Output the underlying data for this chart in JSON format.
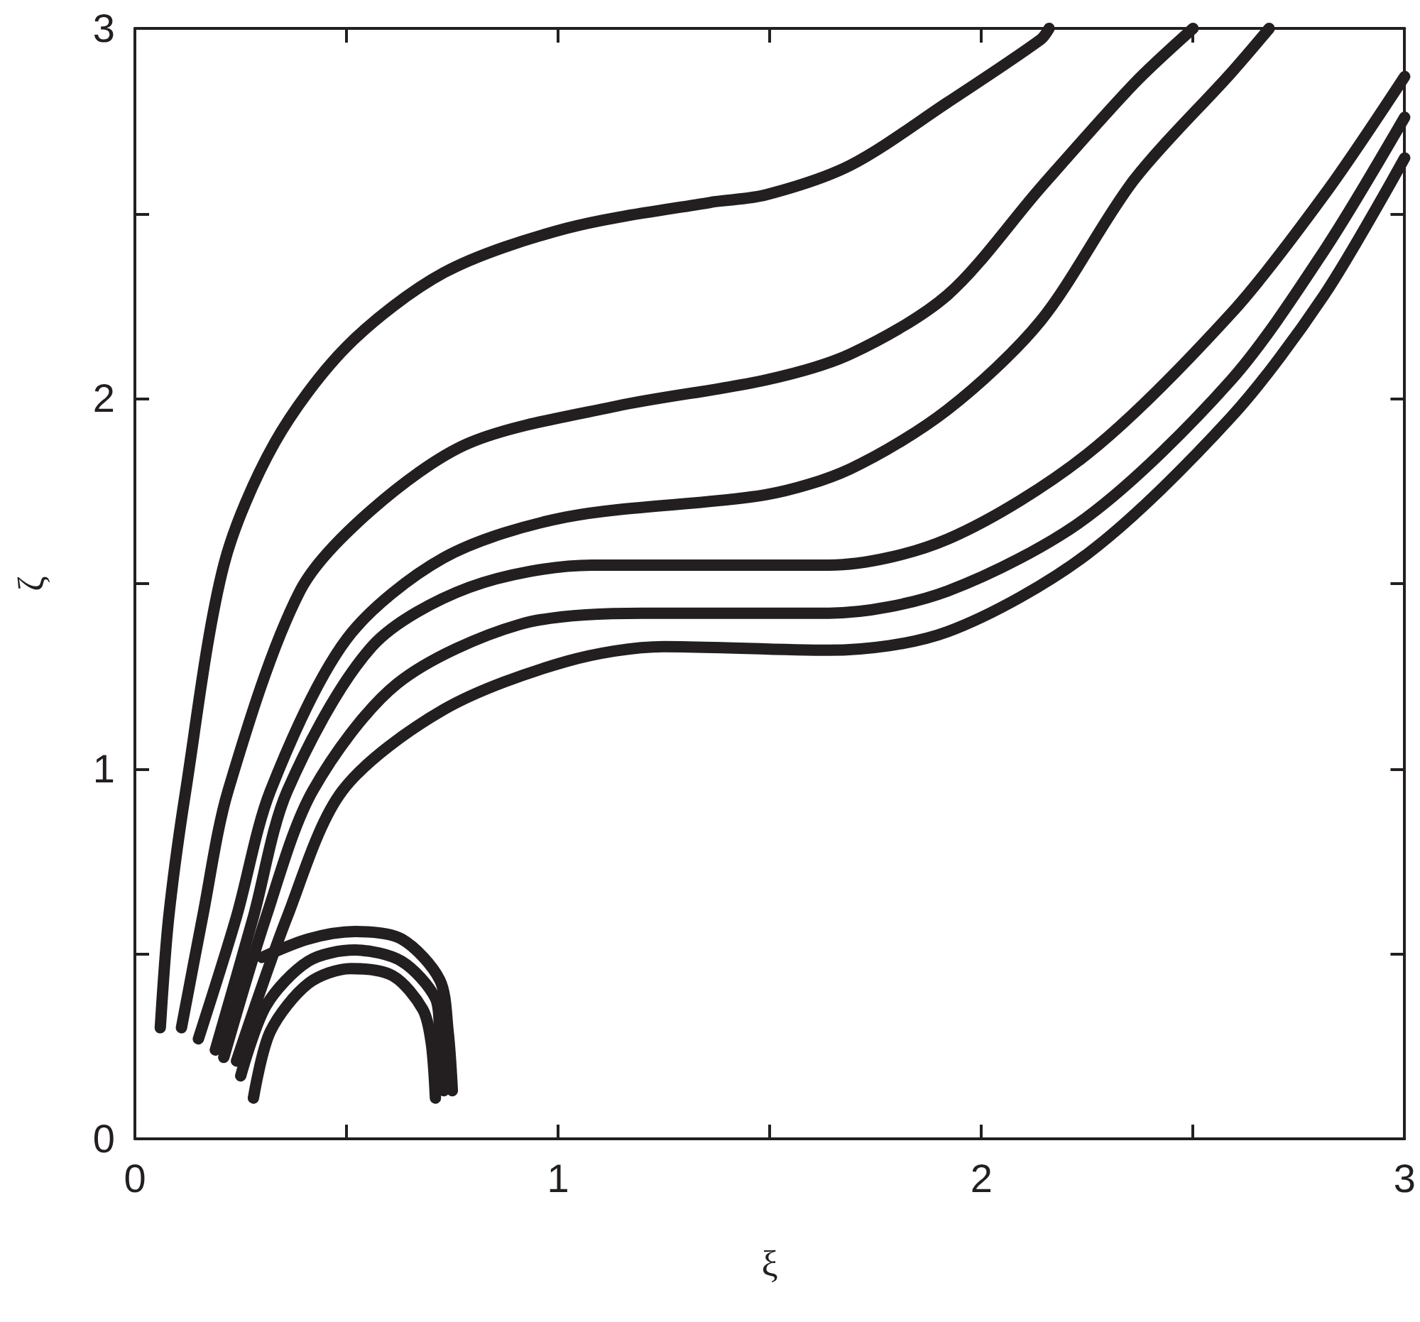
{
  "chart_data": {
    "type": "line",
    "xlabel": "ξ",
    "ylabel": "ζ",
    "xlim": [
      0,
      3
    ],
    "ylim": [
      0,
      3
    ],
    "xticks": [
      0,
      {
        "value": 0.5,
        "label": null
      },
      1,
      {
        "value": 1.5,
        "label": null
      },
      2,
      {
        "value": 2.5,
        "label": null
      },
      3
    ],
    "yticks": [
      0,
      {
        "value": 0.5,
        "label": null
      },
      1,
      {
        "value": 1.5,
        "label": null
      },
      2,
      {
        "value": 2.5,
        "label": null
      },
      3
    ],
    "grid": false,
    "marker": "none",
    "line_style": "solid",
    "series": [
      {
        "color": "#231f20",
        "x": [
          0.06,
          0.08,
          0.12,
          0.21,
          0.33,
          0.5,
          0.73,
          1.02,
          1.36,
          1.49,
          1.69,
          1.92,
          2.14,
          2.16
        ],
        "values": [
          0.3,
          0.6,
          0.94,
          1.55,
          1.88,
          2.14,
          2.34,
          2.46,
          2.53,
          2.55,
          2.63,
          2.8,
          2.97,
          3.0
        ]
      },
      {
        "color": "#231f20",
        "x": [
          0.11,
          0.16,
          0.22,
          0.39,
          0.56,
          0.79,
          1.14,
          1.49,
          1.69,
          1.92,
          2.14,
          2.36,
          2.5
        ],
        "values": [
          0.3,
          0.6,
          0.94,
          1.48,
          1.7,
          1.88,
          1.98,
          2.05,
          2.12,
          2.28,
          2.57,
          2.85,
          3.0
        ]
      },
      {
        "color": "#231f20",
        "x": [
          0.15,
          0.24,
          0.32,
          0.5,
          0.73,
          1.02,
          1.49,
          1.69,
          1.92,
          2.14,
          2.36,
          2.59,
          2.68
        ],
        "values": [
          0.27,
          0.6,
          0.94,
          1.35,
          1.57,
          1.68,
          1.74,
          1.81,
          1.97,
          2.21,
          2.59,
          2.88,
          3.0
        ]
      },
      {
        "color": "#231f20",
        "x": [
          0.19,
          0.28,
          0.36,
          0.56,
          0.79,
          1.08,
          1.49,
          1.64,
          1.92,
          2.25,
          2.59,
          2.81,
          3.0
        ],
        "values": [
          0.24,
          0.6,
          0.94,
          1.33,
          1.49,
          1.55,
          1.55,
          1.55,
          1.62,
          1.85,
          2.23,
          2.55,
          2.87
        ]
      },
      {
        "color": "#231f20",
        "x": [
          0.21,
          0.31,
          0.42,
          0.62,
          0.91,
          1.2,
          1.64,
          1.92,
          2.25,
          2.59,
          2.81,
          3.0
        ],
        "values": [
          0.22,
          0.6,
          0.94,
          1.23,
          1.39,
          1.42,
          1.42,
          1.48,
          1.68,
          2.05,
          2.4,
          2.76
        ]
      },
      {
        "color": "#231f20",
        "x": [
          0.24,
          0.36,
          0.49,
          0.73,
          1.02,
          1.25,
          1.64,
          1.92,
          2.25,
          2.59,
          2.81,
          3.0
        ],
        "values": [
          0.21,
          0.6,
          0.94,
          1.16,
          1.29,
          1.33,
          1.32,
          1.37,
          1.58,
          1.95,
          2.28,
          2.65
        ]
      },
      {
        "color": "#231f20",
        "x": [
          0.3,
          0.41,
          0.52,
          0.63,
          0.72,
          0.74,
          0.75
        ],
        "values": [
          0.49,
          0.54,
          0.56,
          0.54,
          0.43,
          0.29,
          0.13
        ]
      },
      {
        "color": "#231f20",
        "x": [
          0.25,
          0.31,
          0.41,
          0.52,
          0.63,
          0.71,
          0.72,
          0.73
        ],
        "values": [
          0.17,
          0.36,
          0.48,
          0.51,
          0.48,
          0.38,
          0.29,
          0.13
        ]
      },
      {
        "color": "#231f20",
        "x": [
          0.28,
          0.32,
          0.41,
          0.51,
          0.61,
          0.68,
          0.7,
          0.71
        ],
        "values": [
          0.11,
          0.29,
          0.42,
          0.46,
          0.44,
          0.35,
          0.26,
          0.11
        ]
      }
    ]
  }
}
